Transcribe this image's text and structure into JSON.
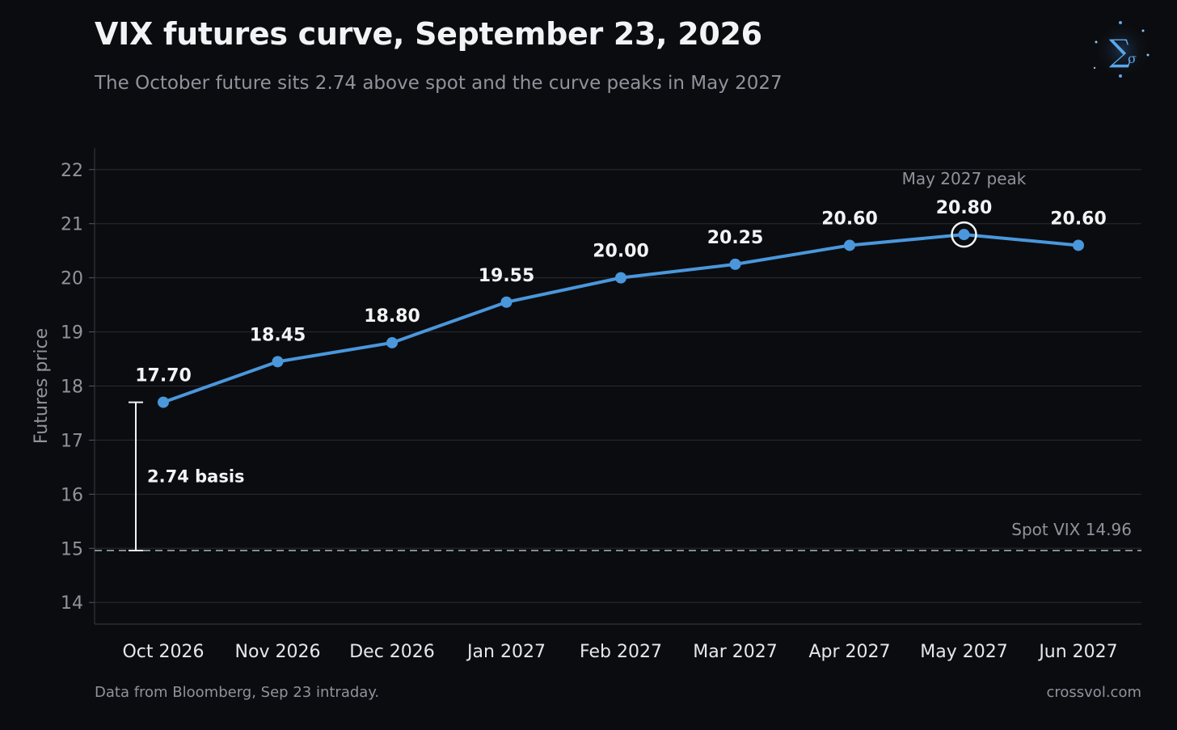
{
  "header": {
    "title": "VIX futures curve, September 23, 2026",
    "subtitle": "The October future sits 2.74 above spot and the curve peaks in May 2027"
  },
  "logo": {
    "icon": "sigma-logo-icon",
    "glyph_main": "∑",
    "glyph_sub": "σ"
  },
  "footer": {
    "source": "Data from Bloomberg, Sep 23 intraday.",
    "site": "crossvol.com"
  },
  "colors": {
    "background": "#0b0c0f",
    "line": "#4a97dc",
    "grid": "#2a2c33",
    "axis_text": "#8f939b",
    "label_text": "#f2f3f5",
    "spot_line": "#7f8f8c"
  },
  "chart_data": {
    "type": "line",
    "title": "VIX futures curve, September 23, 2026",
    "subtitle": "The October future sits 2.74 above spot and the curve peaks in May 2027",
    "xlabel": "",
    "ylabel": "Futures price",
    "ylim": [
      13.6,
      22.4
    ],
    "yticks": [
      14,
      15,
      16,
      17,
      18,
      19,
      20,
      21,
      22
    ],
    "grid": true,
    "categories": [
      "Oct 2026",
      "Nov 2026",
      "Dec 2026",
      "Jan 2027",
      "Feb 2027",
      "Mar 2027",
      "Apr 2027",
      "May 2027",
      "Jun 2027"
    ],
    "series": [
      {
        "values": [
          17.7,
          18.45,
          18.8,
          19.55,
          20.0,
          20.25,
          20.6,
          20.8,
          20.6
        ],
        "data_labels": [
          "17.70",
          "18.45",
          "18.80",
          "19.55",
          "20.00",
          "20.25",
          "20.60",
          "20.80",
          "20.60"
        ]
      }
    ],
    "reference_line": {
      "label": "Spot VIX 14.96",
      "value": 14.96,
      "style": "dashed"
    },
    "annotations": [
      {
        "text": "May 2027 peak",
        "category": "May 2027",
        "value": 20.8,
        "marker": "ring"
      },
      {
        "text": "2.74 basis",
        "from": 14.96,
        "to": 17.7,
        "category": "Oct 2026"
      }
    ]
  }
}
